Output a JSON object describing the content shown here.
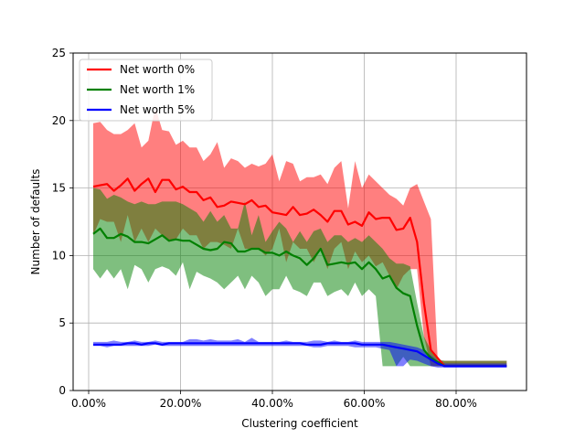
{
  "chart_data": {
    "type": "line",
    "xlabel": "Clustering coefficient",
    "ylabel": "Number of defaults",
    "xlim": [
      -0.04,
      0.95
    ],
    "ylim": [
      0,
      25
    ],
    "x_ticks": [
      0,
      0.2,
      0.4,
      0.6,
      0.8
    ],
    "x_tick_labels": [
      "0.00%",
      "20.00%",
      "40.00%",
      "60.00%",
      "80.00%"
    ],
    "y_ticks": [
      0,
      5,
      10,
      15,
      20,
      25
    ],
    "y_tick_labels": [
      "0",
      "5",
      "10",
      "15",
      "20",
      "25"
    ],
    "grid": true,
    "legend_position": "upper-left",
    "x": [
      0.01,
      0.025,
      0.04,
      0.055,
      0.07,
      0.085,
      0.1,
      0.115,
      0.13,
      0.145,
      0.16,
      0.175,
      0.19,
      0.205,
      0.22,
      0.235,
      0.25,
      0.265,
      0.28,
      0.295,
      0.31,
      0.325,
      0.34,
      0.355,
      0.37,
      0.385,
      0.4,
      0.415,
      0.43,
      0.445,
      0.46,
      0.475,
      0.49,
      0.505,
      0.52,
      0.535,
      0.55,
      0.565,
      0.58,
      0.595,
      0.61,
      0.625,
      0.64,
      0.655,
      0.67,
      0.685,
      0.7,
      0.715,
      0.73,
      0.745,
      0.76,
      0.775,
      0.79,
      0.805,
      0.82,
      0.83,
      0.845,
      0.86,
      0.875,
      0.89,
      0.91
    ],
    "series": [
      {
        "name": "Net worth 0%",
        "color": "#ff0000",
        "band_color": "#ff0000",
        "mean": [
          15.1,
          15.2,
          15.3,
          14.8,
          15.2,
          15.7,
          14.8,
          15.3,
          15.7,
          14.7,
          15.6,
          15.6,
          14.9,
          15.1,
          14.7,
          14.7,
          14.1,
          14.3,
          13.6,
          13.7,
          14.0,
          13.9,
          13.8,
          14.1,
          13.6,
          13.7,
          13.2,
          13.1,
          13.0,
          13.6,
          13.0,
          13.1,
          13.4,
          13.0,
          12.5,
          13.3,
          13.3,
          12.3,
          12.5,
          12.2,
          13.2,
          12.7,
          12.8,
          12.8,
          11.9,
          12.0,
          12.8,
          11.0,
          6.5,
          3.0,
          2.4,
          1.8,
          1.8,
          1.8,
          1.8,
          1.8,
          1.8,
          1.8,
          1.8,
          1.8,
          1.8
        ],
        "upper": [
          19.8,
          19.9,
          19.3,
          19.0,
          19.0,
          19.3,
          19.8,
          18.0,
          18.5,
          21.0,
          19.3,
          19.2,
          18.2,
          18.5,
          18.0,
          18.0,
          17.0,
          17.5,
          18.4,
          16.5,
          17.2,
          17.0,
          16.5,
          16.8,
          16.6,
          16.8,
          17.5,
          15.5,
          17.0,
          16.8,
          15.5,
          15.8,
          15.8,
          16.0,
          15.3,
          16.5,
          17.0,
          13.5,
          17.0,
          15.0,
          16.0,
          15.5,
          15.0,
          14.5,
          14.2,
          13.7,
          15.0,
          15.3,
          14.0,
          12.7,
          2.2,
          2.2,
          2.2,
          2.2,
          2.2,
          2.2,
          2.2,
          2.2,
          2.2,
          2.2,
          2.2
        ],
        "lower": [
          11.5,
          12.7,
          12.5,
          12.5,
          11.0,
          13.0,
          11.0,
          12.0,
          11.0,
          12.0,
          11.5,
          11.0,
          11.2,
          12.0,
          11.5,
          11.5,
          10.5,
          11.0,
          11.0,
          10.8,
          10.5,
          12.0,
          10.5,
          10.5,
          10.5,
          10.0,
          10.5,
          12.0,
          9.5,
          11.0,
          10.5,
          10.5,
          9.5,
          10.5,
          9.0,
          10.5,
          11.0,
          9.0,
          10.3,
          9.5,
          10.0,
          9.2,
          9.5,
          8.5,
          7.5,
          8.5,
          9.0,
          9.0,
          4.0,
          1.8,
          1.8,
          1.8,
          1.8,
          1.8,
          1.8,
          1.8,
          1.8,
          1.8,
          1.8,
          1.8,
          1.8
        ]
      },
      {
        "name": "Net worth 1%",
        "color": "#008000",
        "band_color": "#008000",
        "mean": [
          11.6,
          12.0,
          11.3,
          11.3,
          11.6,
          11.4,
          11.0,
          11.0,
          10.9,
          11.2,
          11.5,
          11.1,
          11.2,
          11.1,
          11.1,
          10.8,
          10.5,
          10.4,
          10.5,
          11.0,
          10.9,
          10.3,
          10.3,
          10.5,
          10.5,
          10.2,
          10.2,
          10.0,
          10.3,
          10.0,
          9.8,
          9.3,
          9.8,
          10.5,
          9.3,
          9.4,
          9.5,
          9.4,
          9.5,
          9.0,
          9.5,
          9.0,
          8.3,
          8.5,
          7.6,
          7.2,
          7.0,
          4.8,
          3.0,
          2.4,
          2.1,
          1.8,
          1.8,
          1.8,
          1.8,
          1.8,
          1.8,
          1.8,
          1.8,
          1.8,
          1.8
        ],
        "upper": [
          15.0,
          14.9,
          14.2,
          14.5,
          14.3,
          14.0,
          13.8,
          14.0,
          13.8,
          13.8,
          14.0,
          14.0,
          14.0,
          13.8,
          13.5,
          13.2,
          12.5,
          13.3,
          12.5,
          13.0,
          12.0,
          12.0,
          14.0,
          11.5,
          13.0,
          11.0,
          11.8,
          12.5,
          12.0,
          11.0,
          11.8,
          11.0,
          11.8,
          12.0,
          11.0,
          11.5,
          11.5,
          11.0,
          11.3,
          11.0,
          11.5,
          11.0,
          10.5,
          9.8,
          9.4,
          9.4,
          9.2,
          6.5,
          4.0,
          3.0,
          2.3,
          2.2,
          2.2,
          2.2,
          2.2,
          2.2,
          2.2,
          2.2,
          2.2,
          2.2,
          2.2
        ],
        "lower": [
          9.0,
          8.3,
          9.0,
          8.3,
          9.0,
          7.5,
          9.3,
          9.0,
          8.0,
          9.0,
          9.2,
          9.0,
          8.5,
          9.5,
          7.5,
          8.8,
          8.5,
          8.3,
          8.0,
          7.5,
          8.0,
          8.5,
          7.5,
          8.5,
          8.0,
          7.0,
          7.5,
          7.5,
          8.5,
          7.5,
          7.3,
          7.0,
          8.0,
          8.0,
          7.0,
          7.3,
          7.5,
          7.0,
          8.0,
          7.0,
          7.5,
          7.0,
          1.8,
          1.8,
          1.8,
          2.5,
          1.8,
          1.8,
          1.8,
          1.8,
          1.8,
          1.8,
          1.8,
          1.8,
          1.8,
          1.8,
          1.8,
          1.8,
          1.8,
          1.8,
          1.8
        ]
      },
      {
        "name": "Net worth 5%",
        "color": "#0000ff",
        "band_color": "#0000ff",
        "mean": [
          3.4,
          3.4,
          3.4,
          3.4,
          3.4,
          3.5,
          3.5,
          3.4,
          3.5,
          3.5,
          3.4,
          3.5,
          3.5,
          3.5,
          3.5,
          3.5,
          3.5,
          3.5,
          3.5,
          3.5,
          3.5,
          3.5,
          3.5,
          3.5,
          3.5,
          3.5,
          3.5,
          3.5,
          3.5,
          3.5,
          3.5,
          3.4,
          3.4,
          3.4,
          3.5,
          3.5,
          3.5,
          3.5,
          3.5,
          3.4,
          3.4,
          3.4,
          3.4,
          3.3,
          3.2,
          3.1,
          3.0,
          2.9,
          2.6,
          2.3,
          2.0,
          1.8,
          1.8,
          1.8,
          1.8,
          1.8,
          1.8,
          1.8,
          1.8,
          1.8,
          1.8
        ],
        "upper": [
          3.6,
          3.6,
          3.6,
          3.7,
          3.6,
          3.6,
          3.7,
          3.6,
          3.6,
          3.7,
          3.6,
          3.6,
          3.6,
          3.6,
          3.8,
          3.8,
          3.7,
          3.8,
          3.7,
          3.7,
          3.7,
          3.8,
          3.6,
          3.9,
          3.6,
          3.6,
          3.6,
          3.6,
          3.7,
          3.6,
          3.6,
          3.6,
          3.7,
          3.7,
          3.6,
          3.7,
          3.6,
          3.6,
          3.7,
          3.6,
          3.6,
          3.6,
          3.6,
          3.6,
          3.5,
          3.4,
          3.3,
          3.2,
          3.0,
          2.6,
          2.2,
          2.0,
          2.0,
          2.0,
          2.0,
          2.0,
          2.0,
          2.0,
          2.0,
          2.0,
          2.0
        ],
        "lower": [
          3.3,
          3.3,
          3.2,
          3.3,
          3.3,
          3.3,
          3.3,
          3.3,
          3.3,
          3.4,
          3.3,
          3.3,
          3.3,
          3.3,
          3.3,
          3.3,
          3.3,
          3.3,
          3.3,
          3.3,
          3.3,
          3.3,
          3.3,
          3.3,
          3.3,
          3.3,
          3.3,
          3.3,
          3.3,
          3.3,
          3.3,
          3.3,
          3.2,
          3.2,
          3.3,
          3.3,
          3.3,
          3.3,
          3.2,
          3.2,
          3.2,
          3.2,
          3.1,
          3.0,
          1.8,
          1.8,
          2.3,
          2.2,
          2.0,
          1.8,
          1.7,
          1.7,
          1.7,
          1.7,
          1.7,
          1.7,
          1.7,
          1.7,
          1.7,
          1.7,
          1.7
        ]
      }
    ]
  }
}
